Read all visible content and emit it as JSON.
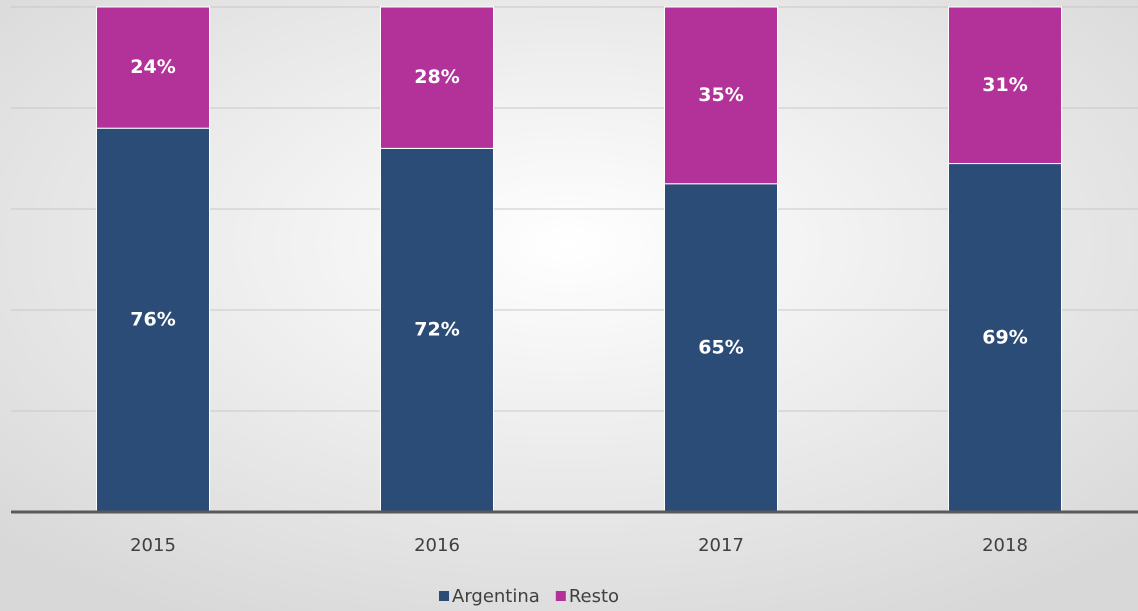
{
  "chart_data": {
    "type": "stacked_bar",
    "categories": [
      "2015",
      "2016",
      "2017",
      "2018"
    ],
    "series": [
      {
        "name": "Argentina",
        "color": "#2c4c78",
        "values": [
          76,
          72,
          65,
          69
        ],
        "value_labels": [
          "76%",
          "72%",
          "65%",
          "69%"
        ]
      },
      {
        "name": "Resto",
        "color": "#b2329a",
        "values": [
          24,
          28,
          35,
          31
        ],
        "value_labels": [
          "24%",
          "28%",
          "35%",
          "31%"
        ]
      }
    ],
    "ylim": [
      0,
      100
    ],
    "yticks": [
      0,
      20,
      40,
      60,
      80,
      100
    ],
    "grid": true,
    "legend": "bottom"
  }
}
